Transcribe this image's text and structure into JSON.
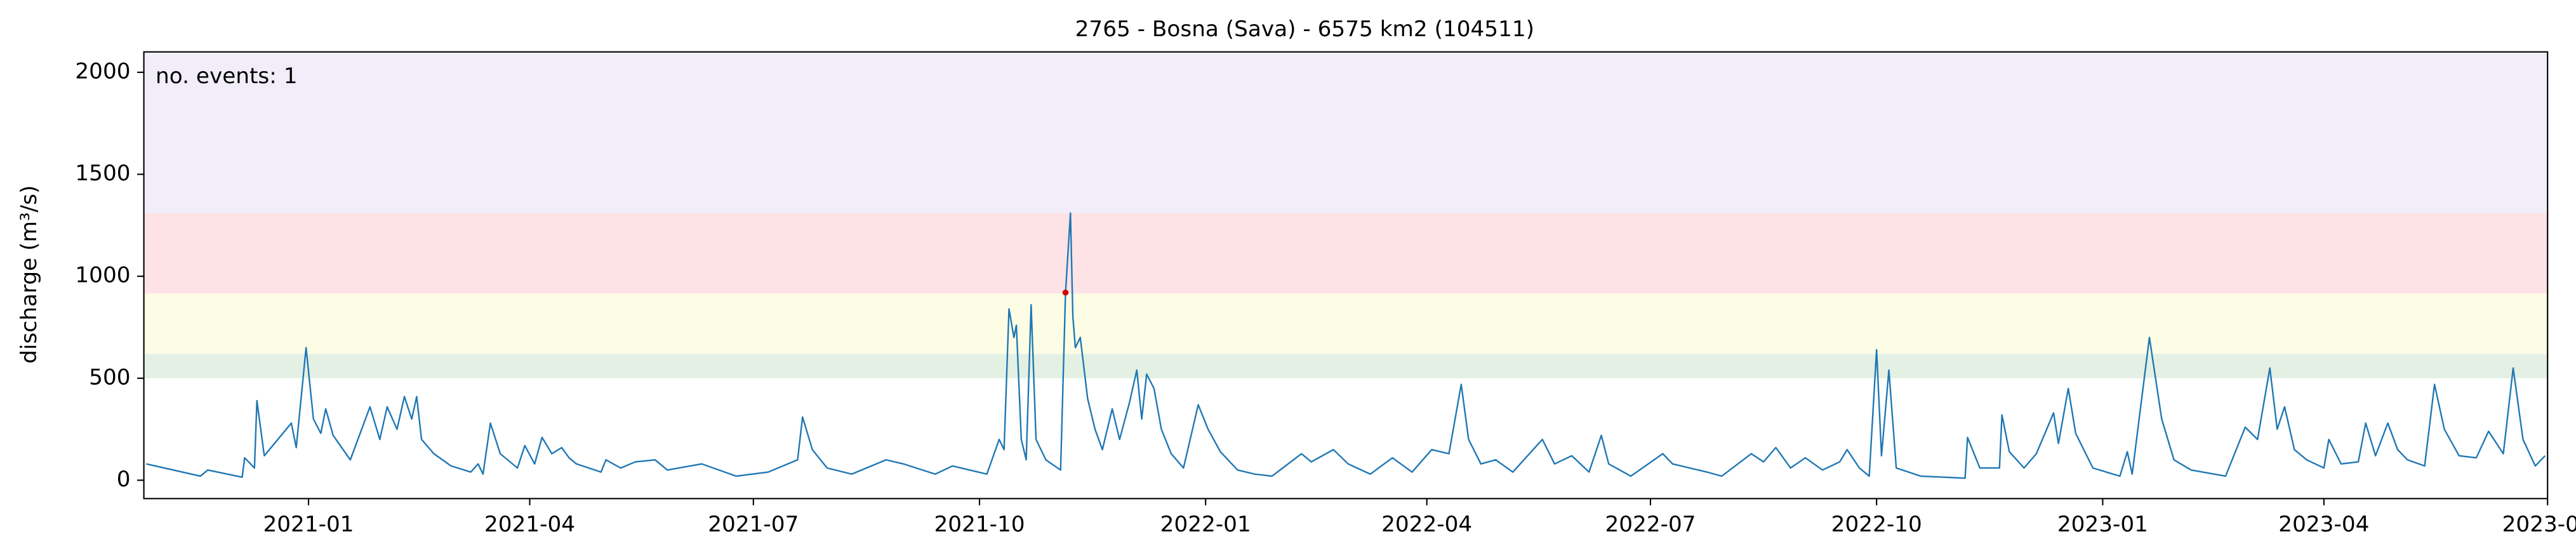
{
  "chart_data": {
    "type": "line",
    "title": "2765 - Bosna (Sava) - 6575 km2 (104511)",
    "y_label": "discharge (m³/s)",
    "annotation": "no. events: 1",
    "annotation_color": "#d40000",
    "xlim": [
      "2020-10-26",
      "2023-07-01"
    ],
    "xticks": [
      {
        "value": "2021-01-01",
        "label": "2021-01"
      },
      {
        "value": "2021-04-01",
        "label": "2021-04"
      },
      {
        "value": "2021-07-01",
        "label": "2021-07"
      },
      {
        "value": "2021-10-01",
        "label": "2021-10"
      },
      {
        "value": "2022-01-01",
        "label": "2022-01"
      },
      {
        "value": "2022-04-01",
        "label": "2022-04"
      },
      {
        "value": "2022-07-01",
        "label": "2022-07"
      },
      {
        "value": "2022-10-01",
        "label": "2022-10"
      },
      {
        "value": "2023-01-01",
        "label": "2023-01"
      },
      {
        "value": "2023-04-01",
        "label": "2023-04"
      },
      {
        "value": "2023-07-01",
        "label": "2023-07"
      }
    ],
    "ylim": [
      -90,
      2100
    ],
    "yticks": [
      0,
      500,
      1000,
      1500,
      2000
    ],
    "bands": [
      {
        "from": 500,
        "to": 620,
        "color": "#e3f0e3"
      },
      {
        "from": 620,
        "to": 915,
        "color": "#fdfde6"
      },
      {
        "from": 915,
        "to": 1310,
        "color": "#fde3e6"
      },
      {
        "from": 1310,
        "to": 2100,
        "color": "#f1eef9"
      }
    ],
    "x": [
      "2020-10-27",
      "2020-11-18",
      "2020-11-21",
      "2020-12-05",
      "2020-12-06",
      "2020-12-10",
      "2020-12-11",
      "2020-12-14",
      "2020-12-25",
      "2020-12-27",
      "2020-12-31",
      "2021-01-03",
      "2021-01-06",
      "2021-01-08",
      "2021-01-11",
      "2021-01-18",
      "2021-01-26",
      "2021-01-30",
      "2021-02-02",
      "2021-02-06",
      "2021-02-09",
      "2021-02-12",
      "2021-02-14",
      "2021-02-16",
      "2021-02-21",
      "2021-02-28",
      "2021-03-08",
      "2021-03-11",
      "2021-03-13",
      "2021-03-16",
      "2021-03-20",
      "2021-03-27",
      "2021-03-30",
      "2021-04-03",
      "2021-04-06",
      "2021-04-10",
      "2021-04-14",
      "2021-04-17",
      "2021-04-20",
      "2021-04-30",
      "2021-05-02",
      "2021-05-08",
      "2021-05-14",
      "2021-05-22",
      "2021-05-27",
      "2021-06-10",
      "2021-06-24",
      "2021-07-07",
      "2021-07-19",
      "2021-07-21",
      "2021-07-25",
      "2021-07-31",
      "2021-08-10",
      "2021-08-24",
      "2021-08-31",
      "2021-09-13",
      "2021-09-20",
      "2021-10-04",
      "2021-10-09",
      "2021-10-11",
      "2021-10-13",
      "2021-10-15",
      "2021-10-16",
      "2021-10-18",
      "2021-10-20",
      "2021-10-22",
      "2021-10-24",
      "2021-10-28",
      "2021-11-03",
      "2021-11-05",
      "2021-11-07",
      "2021-11-08",
      "2021-11-09",
      "2021-11-11",
      "2021-11-14",
      "2021-11-17",
      "2021-11-20",
      "2021-11-24",
      "2021-11-27",
      "2021-12-01",
      "2021-12-04",
      "2021-12-06",
      "2021-12-08",
      "2021-12-11",
      "2021-12-14",
      "2021-12-18",
      "2021-12-23",
      "2021-12-29",
      "2022-01-02",
      "2022-01-07",
      "2022-01-14",
      "2022-01-21",
      "2022-01-28",
      "2022-02-09",
      "2022-02-13",
      "2022-02-22",
      "2022-02-28",
      "2022-03-09",
      "2022-03-18",
      "2022-03-26",
      "2022-04-03",
      "2022-04-10",
      "2022-04-15",
      "2022-04-18",
      "2022-04-23",
      "2022-04-29",
      "2022-05-06",
      "2022-05-18",
      "2022-05-23",
      "2022-05-30",
      "2022-06-06",
      "2022-06-11",
      "2022-06-14",
      "2022-06-23",
      "2022-07-06",
      "2022-07-10",
      "2022-07-24",
      "2022-07-30",
      "2022-08-11",
      "2022-08-16",
      "2022-08-21",
      "2022-08-27",
      "2022-09-02",
      "2022-09-09",
      "2022-09-16",
      "2022-09-19",
      "2022-09-24",
      "2022-09-28",
      "2022-10-01",
      "2022-10-03",
      "2022-10-06",
      "2022-10-09",
      "2022-10-19",
      "2022-11-06",
      "2022-11-07",
      "2022-11-12",
      "2022-11-20",
      "2022-11-21",
      "2022-11-24",
      "2022-11-30",
      "2022-12-05",
      "2022-12-12",
      "2022-12-14",
      "2022-12-18",
      "2022-12-21",
      "2022-12-28",
      "2023-01-08",
      "2023-01-11",
      "2023-01-13",
      "2023-01-20",
      "2023-01-25",
      "2023-01-30",
      "2023-02-06",
      "2023-02-20",
      "2023-02-28",
      "2023-03-05",
      "2023-03-10",
      "2023-03-13",
      "2023-03-16",
      "2023-03-20",
      "2023-03-25",
      "2023-04-01",
      "2023-04-03",
      "2023-04-08",
      "2023-04-15",
      "2023-04-18",
      "2023-04-22",
      "2023-04-27",
      "2023-05-01",
      "2023-05-05",
      "2023-05-12",
      "2023-05-16",
      "2023-05-20",
      "2023-05-26",
      "2023-06-02",
      "2023-06-07",
      "2023-06-13",
      "2023-06-17",
      "2023-06-21",
      "2023-06-26",
      "2023-06-30"
    ],
    "series": [
      {
        "name": "discharge",
        "color": "#1f77b4",
        "values": [
          80,
          20,
          50,
          15,
          110,
          60,
          390,
          120,
          280,
          160,
          650,
          300,
          230,
          350,
          220,
          100,
          360,
          200,
          360,
          250,
          410,
          300,
          410,
          200,
          130,
          70,
          40,
          80,
          30,
          280,
          130,
          60,
          170,
          80,
          210,
          130,
          160,
          110,
          80,
          40,
          100,
          60,
          90,
          100,
          50,
          80,
          20,
          40,
          100,
          310,
          150,
          60,
          30,
          100,
          80,
          30,
          70,
          30,
          200,
          150,
          840,
          700,
          760,
          200,
          100,
          860,
          200,
          100,
          50,
          920,
          1310,
          800,
          650,
          700,
          400,
          250,
          150,
          350,
          200,
          380,
          540,
          300,
          520,
          450,
          250,
          130,
          60,
          370,
          250,
          140,
          50,
          30,
          20,
          130,
          90,
          150,
          80,
          30,
          110,
          40,
          150,
          130,
          470,
          200,
          80,
          100,
          40,
          200,
          80,
          120,
          40,
          220,
          80,
          20,
          130,
          80,
          40,
          20,
          130,
          90,
          160,
          60,
          110,
          50,
          90,
          150,
          60,
          20,
          640,
          120,
          540,
          60,
          20,
          10,
          210,
          60,
          60,
          320,
          140,
          60,
          130,
          330,
          180,
          450,
          230,
          60,
          20,
          140,
          30,
          700,
          300,
          100,
          50,
          20,
          260,
          200,
          550,
          250,
          360,
          150,
          100,
          60,
          200,
          80,
          90,
          280,
          120,
          280,
          150,
          100,
          70,
          470,
          250,
          120,
          110,
          240,
          130,
          550,
          200,
          70,
          120
        ]
      }
    ],
    "events": {
      "color": "#d40000",
      "x": [
        "2021-11-05"
      ],
      "values": [
        920
      ]
    }
  }
}
